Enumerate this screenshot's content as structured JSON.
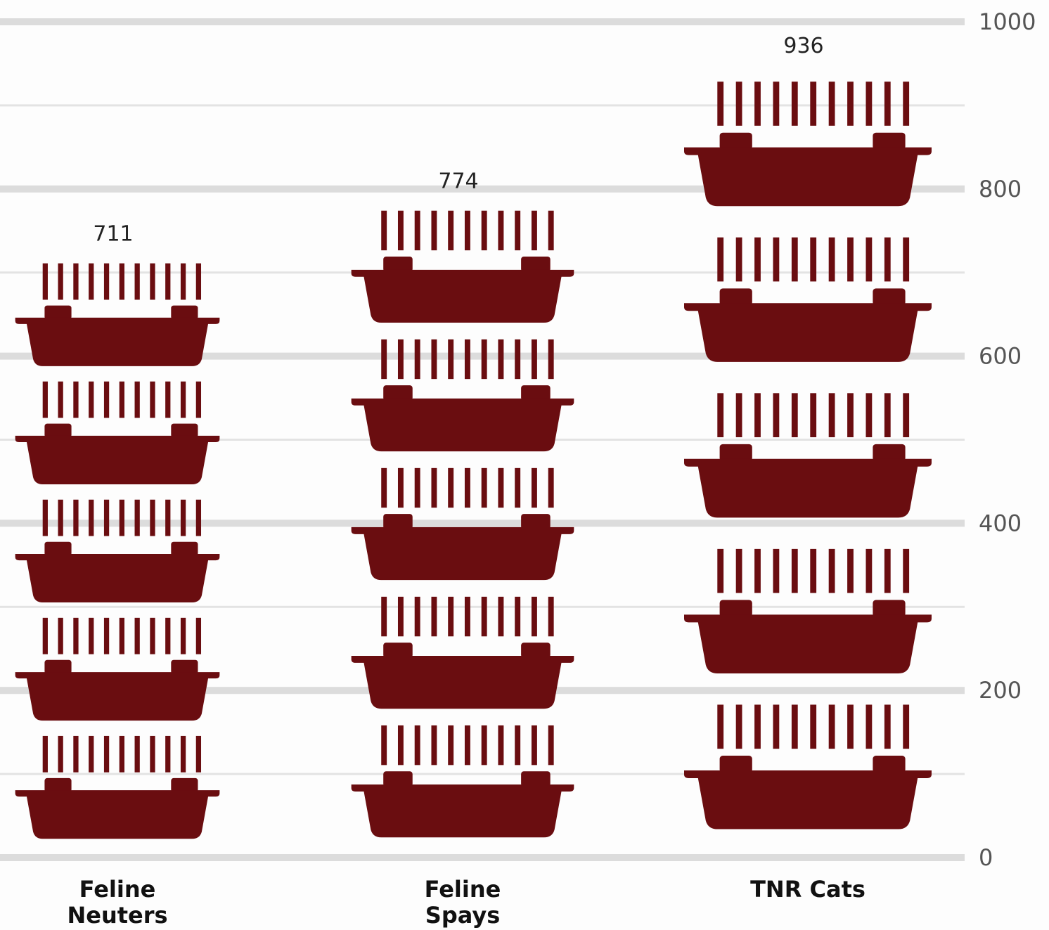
{
  "chart_data": {
    "type": "bar",
    "categories": [
      "Feline\nNeuters",
      "Feline\nSpays",
      "TNR Cats"
    ],
    "values": [
      711,
      774,
      936
    ],
    "data_labels": [
      "711",
      "774",
      "936"
    ],
    "ylim": [
      0,
      1000
    ],
    "yticks": [
      0,
      200,
      400,
      600,
      800,
      1000
    ],
    "ytick_labels": [
      "0",
      "200",
      "400",
      "600",
      "800",
      "1000"
    ],
    "grid": true,
    "y_axis_side": "right",
    "colors": {
      "icon": "#6a0d10",
      "grid_major": "#dcdcdc",
      "grid_minor": "#e3e3e3",
      "background": "#fdfdfd"
    },
    "icon": "cat-carrier-icon"
  }
}
